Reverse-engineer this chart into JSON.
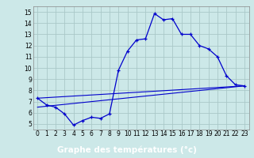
{
  "xlabel": "Graphe des températures (°c)",
  "bg_color": "#cce8e8",
  "plot_bg_color": "#cce8e8",
  "line_color": "#0000cc",
  "grid_color": "#aac8c8",
  "xlabel_bg": "#00008b",
  "xlabel_fg": "#ffffff",
  "hours": [
    0,
    1,
    2,
    3,
    4,
    5,
    6,
    7,
    8,
    9,
    10,
    11,
    12,
    13,
    14,
    15,
    16,
    17,
    18,
    19,
    20,
    21,
    22,
    23
  ],
  "temp_main": [
    7.3,
    6.7,
    6.5,
    5.9,
    4.9,
    5.3,
    5.6,
    5.5,
    5.9,
    9.8,
    11.5,
    12.5,
    12.6,
    14.85,
    14.3,
    14.4,
    13.0,
    13.0,
    12.0,
    11.7,
    11.0,
    9.3,
    8.5,
    8.4
  ],
  "trend1_x": [
    0,
    23
  ],
  "trend1_y": [
    7.3,
    8.4
  ],
  "trend2_x": [
    0,
    23
  ],
  "trend2_y": [
    6.5,
    8.4
  ],
  "xlim": [
    -0.5,
    23.5
  ],
  "ylim": [
    4.5,
    15.5
  ],
  "xticks": [
    0,
    1,
    2,
    3,
    4,
    5,
    6,
    7,
    8,
    9,
    10,
    11,
    12,
    13,
    14,
    15,
    16,
    17,
    18,
    19,
    20,
    21,
    22,
    23
  ],
  "yticks": [
    5,
    6,
    7,
    8,
    9,
    10,
    11,
    12,
    13,
    14,
    15
  ]
}
